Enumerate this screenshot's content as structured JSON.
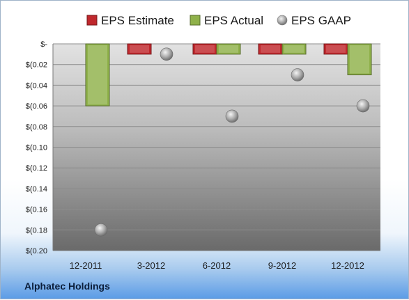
{
  "chart_data": {
    "type": "bar",
    "categories": [
      "12-2011",
      "3-2012",
      "6-2012",
      "9-2012",
      "12-2012"
    ],
    "series": [
      {
        "name": "EPS Estimate",
        "kind": "bar",
        "color": "#c0282d",
        "values": [
          null,
          -0.01,
          -0.01,
          -0.01,
          -0.01
        ]
      },
      {
        "name": "EPS Actual",
        "kind": "bar",
        "color": "#8fb14a",
        "values": [
          -0.06,
          null,
          -0.01,
          -0.01,
          -0.03
        ]
      },
      {
        "name": "EPS GAAP",
        "kind": "marker",
        "color": "#a8a8a8",
        "values": [
          -0.18,
          -0.01,
          -0.07,
          -0.03,
          -0.06
        ]
      }
    ],
    "yticks": [
      "$-",
      "$(0.02",
      "$(0.04",
      "$(0.06",
      "$(0.08",
      "$(0.10",
      "$(0.12",
      "$(0.14",
      "$(0.16",
      "$(0.18",
      "$(0.20"
    ],
    "ylim": [
      -0.2,
      0
    ],
    "legend_position": "top",
    "grid": true
  },
  "footer": {
    "company": "Alphatec Holdings"
  }
}
